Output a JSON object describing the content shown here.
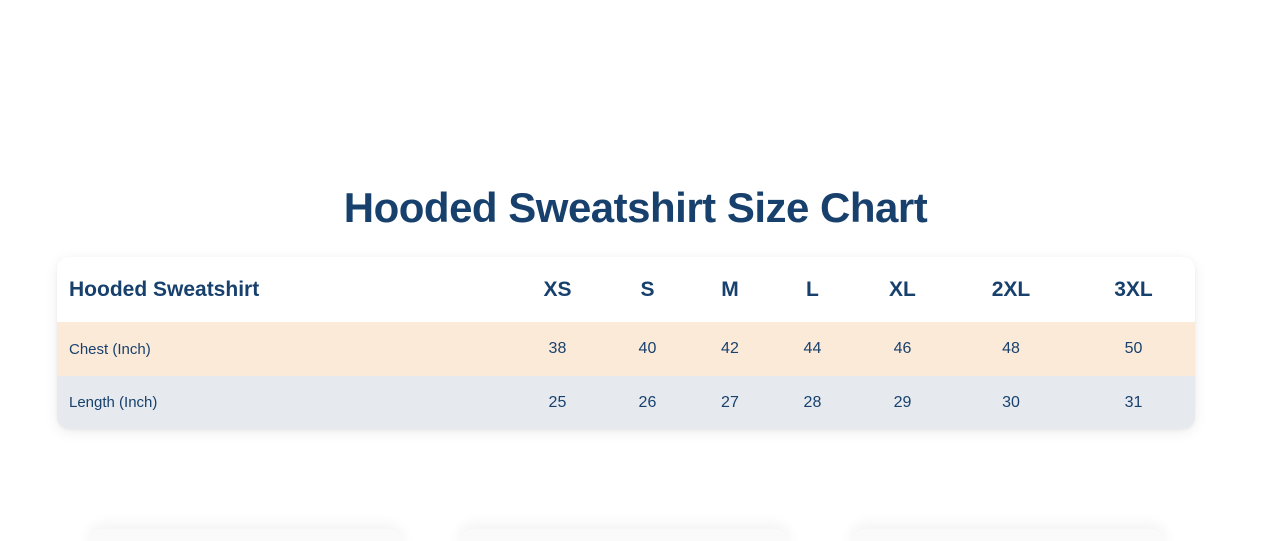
{
  "page": {
    "title": "Hooded Sweatshirt Size Chart"
  },
  "size_chart": {
    "name_header": "Hooded Sweatshirt",
    "columns": [
      "XS",
      "S",
      "M",
      "L",
      "XL",
      "2XL",
      "3XL"
    ],
    "rows": [
      {
        "label": "Chest (Inch)",
        "values": [
          "38",
          "40",
          "42",
          "44",
          "46",
          "48",
          "50"
        ]
      },
      {
        "label": "Length (Inch)",
        "values": [
          "25",
          "26",
          "27",
          "28",
          "29",
          "30",
          "31"
        ]
      }
    ]
  },
  "colors": {
    "navy_text": "#17406d",
    "chest_row_bg": "#fcead9",
    "length_row_bg": "#e6eaee",
    "card_bg": "#ffffff",
    "page_bg": "#ffffff"
  }
}
